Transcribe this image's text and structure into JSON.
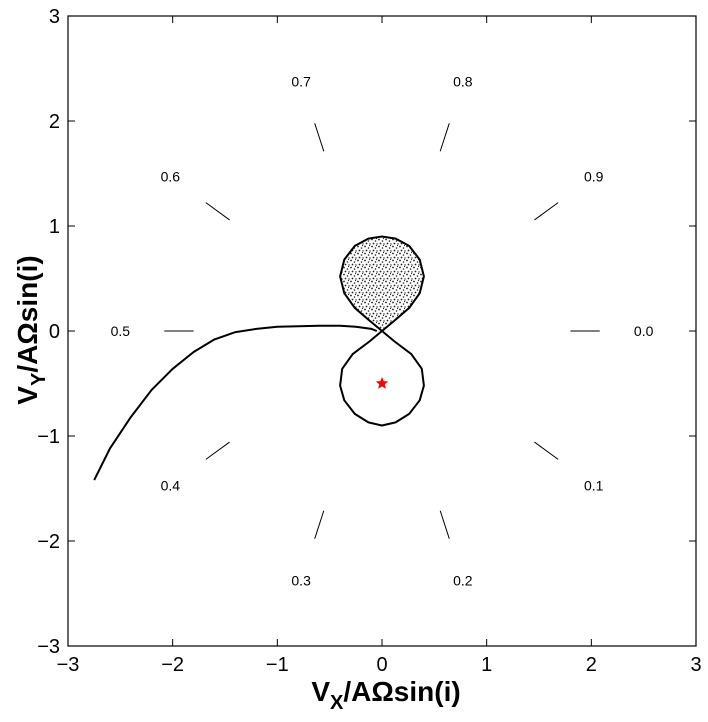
{
  "chart_data": {
    "type": "line",
    "title": "",
    "xlabel": {
      "main": "V",
      "sub": "X",
      "rest": "/AΩsin(i)"
    },
    "ylabel": {
      "main": "V",
      "sub": "Y",
      "rest": "/AΩsin(i)"
    },
    "xlim": [
      -3,
      3
    ],
    "ylim": [
      -3,
      3
    ],
    "x_ticks": [
      "−3",
      "−2",
      "−1",
      "0",
      "1",
      "2",
      "3"
    ],
    "y_ticks": [
      "−3",
      "−2",
      "−1",
      "0",
      "1",
      "2",
      "3"
    ],
    "grid": false,
    "center_marker": {
      "x": 0,
      "y": -0.5,
      "symbol": "star",
      "color": "#ff0000"
    },
    "phase_labels": [
      "0.0",
      "0.1",
      "0.2",
      "0.3",
      "0.4",
      "0.5",
      "0.6",
      "0.7",
      "0.8",
      "0.9"
    ],
    "phase_tick_radius": [
      1.8,
      2.08
    ],
    "phase_label_radius": 2.5,
    "curves": [
      {
        "points": [
          [
            -2.75,
            -1.42
          ],
          [
            -2.6,
            -1.12
          ],
          [
            -2.4,
            -0.82
          ],
          [
            -2.2,
            -0.56
          ],
          [
            -2.0,
            -0.36
          ],
          [
            -1.8,
            -0.2
          ],
          [
            -1.6,
            -0.08
          ],
          [
            -1.4,
            -0.01
          ],
          [
            -1.2,
            0.02
          ],
          [
            -1.0,
            0.04
          ],
          [
            -0.8,
            0.045
          ],
          [
            -0.6,
            0.05
          ],
          [
            -0.4,
            0.05
          ],
          [
            -0.25,
            0.04
          ],
          [
            -0.1,
            0.02
          ],
          [
            -0.05,
            0.0
          ]
        ]
      },
      {
        "points": [
          [
            0.0,
            0.0
          ],
          [
            0.12,
            -0.1
          ],
          [
            0.28,
            -0.22
          ],
          [
            0.38,
            -0.36
          ],
          [
            0.4,
            -0.52
          ],
          [
            0.36,
            -0.66
          ],
          [
            0.26,
            -0.79
          ],
          [
            0.13,
            -0.87
          ],
          [
            0.0,
            -0.9
          ],
          [
            -0.13,
            -0.87
          ],
          [
            -0.26,
            -0.79
          ],
          [
            -0.36,
            -0.66
          ],
          [
            -0.4,
            -0.52
          ],
          [
            -0.38,
            -0.36
          ],
          [
            -0.28,
            -0.22
          ],
          [
            -0.12,
            -0.1
          ],
          [
            0.0,
            0.0
          ]
        ]
      }
    ],
    "filled_regions": [
      {
        "fill": "stipple",
        "points": [
          [
            0.0,
            0.0
          ],
          [
            0.12,
            0.1
          ],
          [
            0.26,
            0.22
          ],
          [
            0.36,
            0.36
          ],
          [
            0.4,
            0.52
          ],
          [
            0.36,
            0.68
          ],
          [
            0.26,
            0.81
          ],
          [
            0.13,
            0.88
          ],
          [
            0.0,
            0.9
          ],
          [
            -0.13,
            0.88
          ],
          [
            -0.26,
            0.81
          ],
          [
            -0.36,
            0.68
          ],
          [
            -0.4,
            0.52
          ],
          [
            -0.36,
            0.36
          ],
          [
            -0.26,
            0.22
          ],
          [
            -0.12,
            0.1
          ],
          [
            0.0,
            0.0
          ]
        ]
      }
    ]
  }
}
